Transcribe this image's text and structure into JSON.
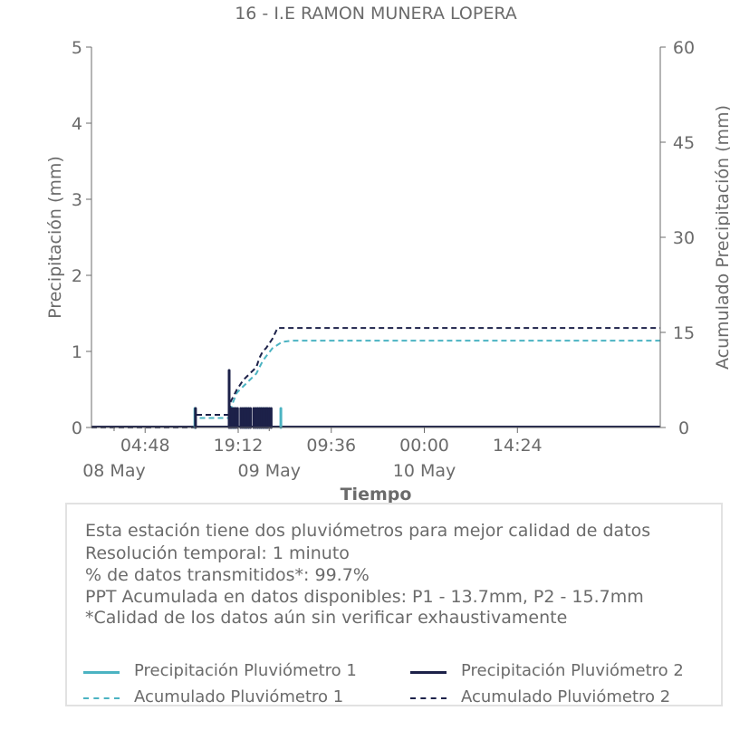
{
  "chart_data": {
    "type": "line",
    "title": "16 - I.E RAMON MUNERA LOPERA",
    "xlabel": "Tiempo",
    "ylabel": "Precipitación (mm)",
    "y2label": "Acumulado Precipitación (mm)",
    "ylim": [
      0,
      5
    ],
    "y2lim": [
      0,
      60
    ],
    "yticks": [
      "0",
      "1",
      "2",
      "3",
      "4",
      "5"
    ],
    "y2ticks": [
      "0",
      "15",
      "30",
      "45",
      "60"
    ],
    "x_range_hours": [
      -3.5,
      84.5
    ],
    "xticks": [
      {
        "hour": 4.8,
        "label": "04:48"
      },
      {
        "hour": 19.2,
        "label": "19:12"
      },
      {
        "hour": 33.6,
        "label": "09:36"
      },
      {
        "hour": 48.0,
        "label": "00:00"
      },
      {
        "hour": 62.4,
        "label": "14:24"
      }
    ],
    "date_labels": [
      {
        "hour": 0,
        "label": "08 May"
      },
      {
        "hour": 24,
        "label": "09 May"
      },
      {
        "hour": 48,
        "label": "10 May"
      }
    ],
    "grid": false,
    "series": [
      {
        "name": "Precipitación Pluviómetro 1",
        "axis": "left",
        "style": "bars",
        "color": "#4bb3c2",
        "points": [
          [
            12.5,
            0.25
          ],
          [
            18.4,
            0.25
          ],
          [
            18.7,
            0.25
          ],
          [
            20.3,
            0.25
          ],
          [
            20.8,
            0.25
          ],
          [
            22.2,
            0.25
          ],
          [
            22.7,
            0.25
          ],
          [
            23.1,
            0.25
          ],
          [
            23.6,
            0.25
          ],
          [
            25.8,
            0.25
          ]
        ]
      },
      {
        "name": "Precipitación Pluviómetro 2",
        "axis": "left",
        "style": "bars",
        "color": "#1c2149",
        "points": [
          [
            12.6,
            0.25
          ],
          [
            17.8,
            0.75
          ],
          [
            18.0,
            0.25
          ],
          [
            18.2,
            0.25
          ],
          [
            18.5,
            0.25
          ],
          [
            18.8,
            0.25
          ],
          [
            19.1,
            0.25
          ],
          [
            19.6,
            0.25
          ],
          [
            19.9,
            0.25
          ],
          [
            20.2,
            0.25
          ],
          [
            20.5,
            0.25
          ],
          [
            20.8,
            0.25
          ],
          [
            21.1,
            0.25
          ],
          [
            21.6,
            0.25
          ],
          [
            21.9,
            0.25
          ],
          [
            22.2,
            0.25
          ],
          [
            22.5,
            0.25
          ],
          [
            22.8,
            0.25
          ],
          [
            23.1,
            0.25
          ],
          [
            23.4,
            0.25
          ],
          [
            23.7,
            0.25
          ],
          [
            24.0,
            0.25
          ],
          [
            24.3,
            0.25
          ]
        ]
      },
      {
        "name": "Acumulado Pluviómetro 1",
        "axis": "right",
        "style": "dashed",
        "color": "#4bb3c2",
        "points": [
          [
            -3.5,
            0
          ],
          [
            12.5,
            0
          ],
          [
            12.5,
            1.5
          ],
          [
            17.8,
            1.5
          ],
          [
            18.2,
            3.5
          ],
          [
            19.0,
            5.5
          ],
          [
            20.0,
            6.5
          ],
          [
            21.0,
            7.5
          ],
          [
            22.0,
            8.5
          ],
          [
            22.5,
            9.5
          ],
          [
            23.0,
            10.5
          ],
          [
            23.5,
            11.2
          ],
          [
            24.5,
            12.5
          ],
          [
            26.0,
            13.5
          ],
          [
            27.5,
            13.7
          ],
          [
            84.5,
            13.7
          ]
        ]
      },
      {
        "name": "Acumulado Pluviómetro 2",
        "axis": "right",
        "style": "dashed",
        "color": "#1c2149",
        "points": [
          [
            -3.5,
            0
          ],
          [
            12.6,
            0
          ],
          [
            12.6,
            2.0
          ],
          [
            17.8,
            2.0
          ],
          [
            18.0,
            4.0
          ],
          [
            19.0,
            6.0
          ],
          [
            20.0,
            7.5
          ],
          [
            21.0,
            8.5
          ],
          [
            22.0,
            9.5
          ],
          [
            22.5,
            11.0
          ],
          [
            23.0,
            12.0
          ],
          [
            23.5,
            12.5
          ],
          [
            24.5,
            14.0
          ],
          [
            25.3,
            15.7
          ],
          [
            84.5,
            15.7
          ]
        ]
      }
    ]
  },
  "info": {
    "lines": [
      "Esta estación tiene dos pluviómetros para mejor calidad de datos",
      "Resolución temporal: 1 minuto",
      "% de datos transmitidos*: 99.7%",
      "PPT Acumulada en datos disponibles: P1 - 13.7mm, P2 - 15.7mm",
      "*Calidad de los datos aún sin verificar exhaustivamente"
    ]
  },
  "legend": {
    "placement": "bottom",
    "items": [
      {
        "label": "Precipitación Pluviómetro 1",
        "color": "#4bb3c2",
        "style": "solid"
      },
      {
        "label": "Precipitación Pluviómetro 2",
        "color": "#1c2149",
        "style": "solid"
      },
      {
        "label": "Acumulado Pluviómetro 1",
        "color": "#4bb3c2",
        "style": "dashed"
      },
      {
        "label": "Acumulado Pluviómetro 2",
        "color": "#1c2149",
        "style": "dashed"
      }
    ]
  }
}
